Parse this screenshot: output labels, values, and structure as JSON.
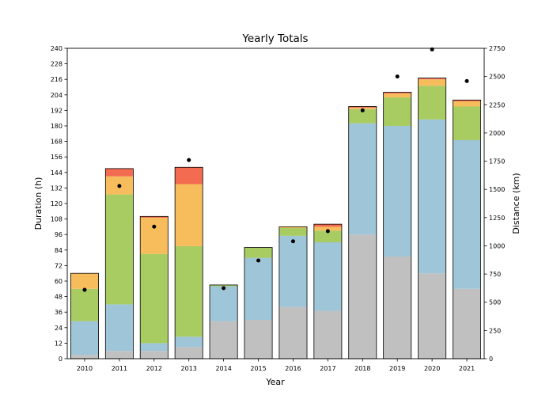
{
  "chart_data": {
    "type": "bar",
    "stacked": true,
    "title": "Yearly Totals",
    "xlabel": "Year",
    "ylabel": "Duration (h)",
    "y2label": "Distance (km)",
    "ylim": [
      0,
      240
    ],
    "y2lim": [
      0,
      2750
    ],
    "yticks": [
      0,
      12,
      24,
      36,
      48,
      60,
      72,
      84,
      96,
      108,
      120,
      132,
      144,
      156,
      168,
      180,
      192,
      204,
      216,
      228,
      240
    ],
    "y2ticks": [
      0,
      250,
      500,
      750,
      1000,
      1250,
      1500,
      1750,
      2000,
      2250,
      2500,
      2750
    ],
    "grid": false,
    "categories": [
      "2010",
      "2011",
      "2012",
      "2013",
      "2014",
      "2015",
      "2016",
      "2017",
      "2018",
      "2019",
      "2020",
      "2021"
    ],
    "series": [
      {
        "color": "#c0c0c0",
        "values": [
          3,
          6,
          6,
          9,
          29,
          30,
          40,
          37,
          96,
          79,
          66,
          54
        ]
      },
      {
        "color": "#9ec5d8",
        "values": [
          26,
          36,
          6,
          8,
          27,
          48,
          55,
          53,
          86,
          101,
          119,
          115
        ]
      },
      {
        "color": "#a8cb62",
        "values": [
          25,
          85,
          69,
          70,
          1,
          8,
          6,
          9,
          11,
          22,
          26,
          26
        ]
      },
      {
        "color": "#f7bc5c",
        "values": [
          12,
          14,
          28,
          48,
          0,
          0,
          1,
          3,
          1,
          3,
          5,
          4
        ]
      },
      {
        "color": "#f36b51",
        "values": [
          0,
          6,
          1,
          13,
          0,
          0,
          0,
          2,
          1,
          1,
          1,
          1
        ]
      }
    ],
    "distance": {
      "axis": "right",
      "marker": "dot",
      "values": [
        610,
        1530,
        1170,
        1760,
        625,
        870,
        1040,
        1130,
        2200,
        2500,
        2740,
        2460
      ]
    }
  }
}
